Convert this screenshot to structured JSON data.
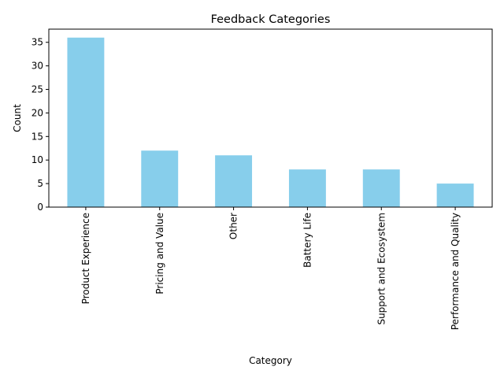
{
  "chart_data": {
    "type": "bar",
    "title": "Feedback Categories",
    "xlabel": "Category",
    "ylabel": "Count",
    "categories": [
      "Product Experience",
      "Pricing and Value",
      "Other",
      "Battery Life",
      "Support and Ecosystem",
      "Performance and Quality"
    ],
    "values": [
      36,
      12,
      11,
      8,
      8,
      5
    ],
    "ylim": [
      0,
      37.8
    ],
    "yticks": [
      0,
      5,
      10,
      15,
      20,
      25,
      30,
      35
    ],
    "grid": false,
    "legend": "none",
    "bar_color": "#87ceeb",
    "tick_label_rotation": 90
  }
}
